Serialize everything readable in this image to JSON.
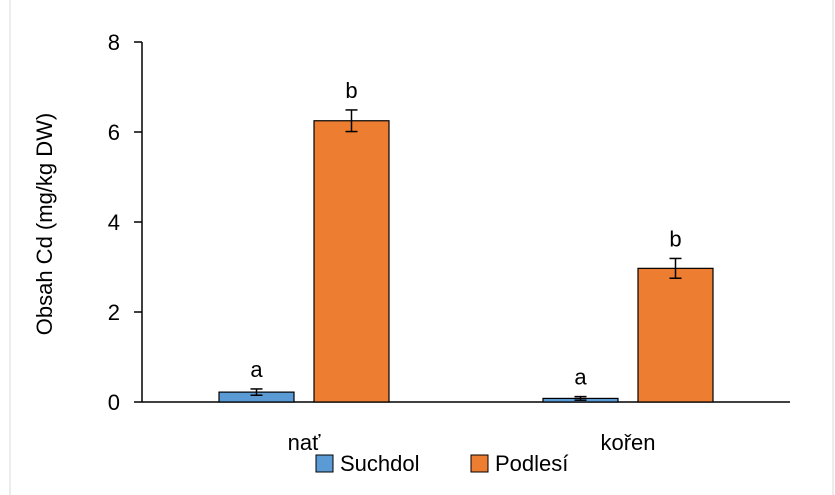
{
  "chart_data": {
    "type": "bar",
    "title": "",
    "xlabel": "",
    "ylabel": "Obsah Cd (mg/kg DW)",
    "ylim": [
      0,
      8
    ],
    "yticks": [
      0,
      2,
      4,
      6,
      8
    ],
    "categories": [
      "nať",
      "kořen"
    ],
    "series": [
      {
        "name": "Suchdol",
        "color": "#5b9bd5",
        "values": [
          0.22,
          0.08
        ],
        "errors": [
          0.07,
          0.04
        ],
        "labels": [
          "a",
          "a"
        ]
      },
      {
        "name": "Podlesí",
        "color": "#ed7d31",
        "values": [
          6.25,
          2.97
        ],
        "errors": [
          0.24,
          0.22
        ],
        "labels": [
          "b",
          "b"
        ]
      }
    ],
    "grid": false,
    "legend_position": "bottom"
  }
}
